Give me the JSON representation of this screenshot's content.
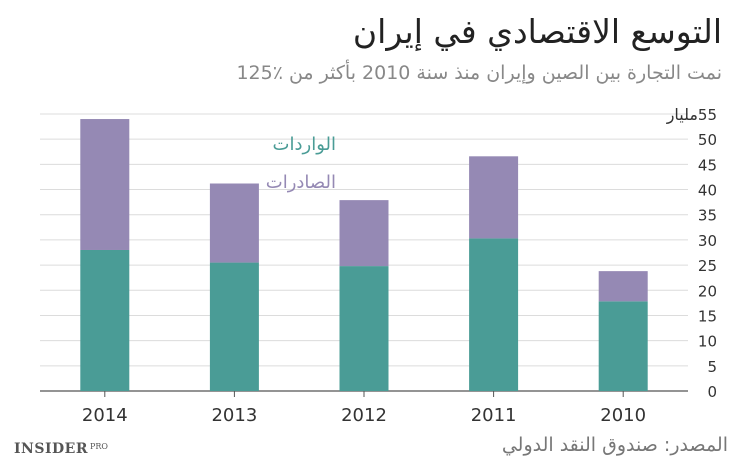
{
  "title": "التوسع الاقتصادي في إيران",
  "subtitle": "نمت التجارة بين الصين وإيران منذ سنة 2010 بأكثر من ٪125",
  "source": "المصدر: صندوق النقد الدولي",
  "logo": {
    "main": "INSIDER",
    "suffix": "PRO"
  },
  "colors": {
    "imports": "#4a9c96",
    "exports": "#9589b4",
    "imports_label": "#4a9c96",
    "exports_label": "#9589b4"
  },
  "chart_data": {
    "type": "bar",
    "stacked": true,
    "categories": [
      "2014",
      "2013",
      "2012",
      "2011",
      "2010"
    ],
    "series": [
      {
        "name": "الواردات",
        "values": [
          28,
          25.5,
          24.8,
          30.3,
          17.8
        ]
      },
      {
        "name": "الصادرات",
        "values": [
          26,
          15.7,
          13.1,
          16.3,
          6
        ]
      }
    ],
    "ylabel": "مليار",
    "ylim": [
      0,
      55
    ],
    "yticks": [
      0,
      5,
      10,
      15,
      20,
      25,
      30,
      35,
      40,
      45,
      50,
      55
    ],
    "grid": true,
    "legend_position": "inside-top-left",
    "axis_side": "right"
  }
}
